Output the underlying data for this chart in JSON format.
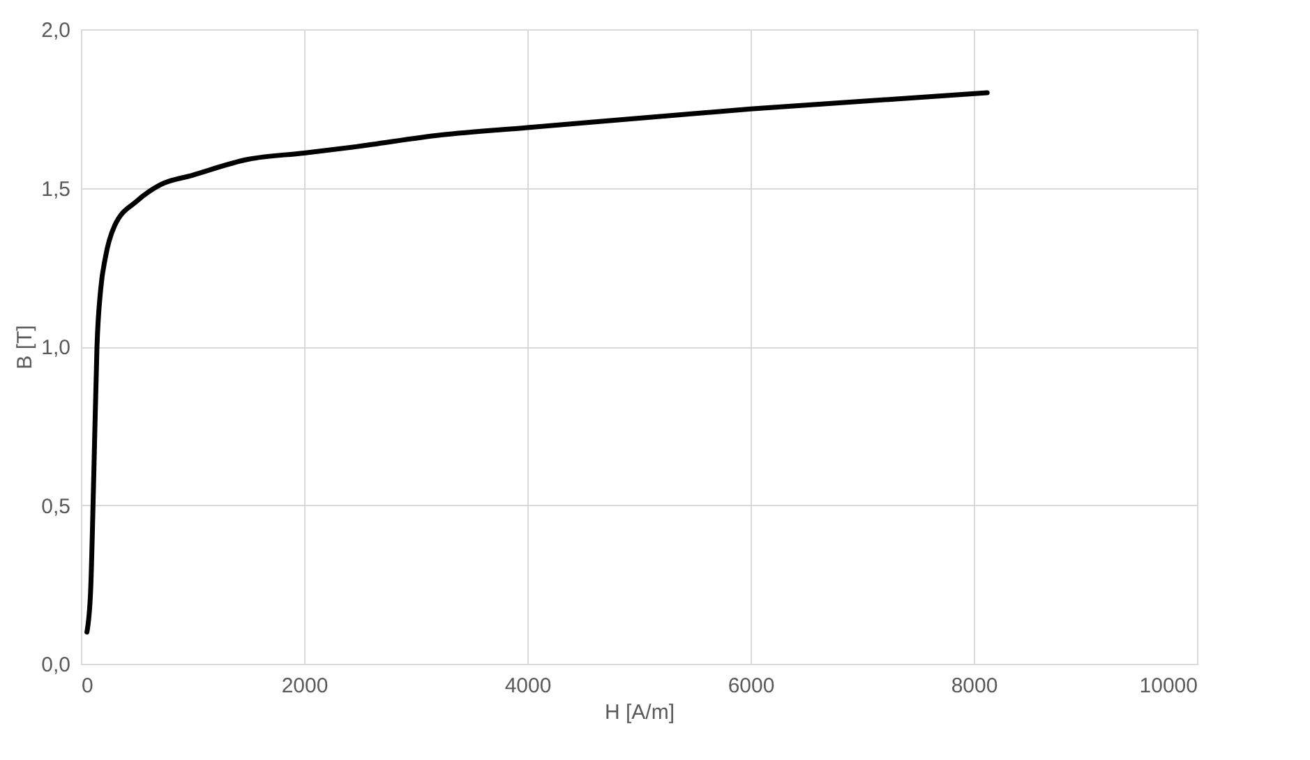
{
  "chart_data": {
    "type": "line",
    "xlabel": "H [A/m]",
    "ylabel": "B [T]",
    "x": [
      54,
      87,
      115,
      144,
      177,
      219,
      301,
      507,
      713,
      1000,
      1497,
      2000,
      2466,
      3229,
      4000,
      6000,
      8120
    ],
    "series": [
      {
        "color": "#000000",
        "values": [
          0.1,
          0.23,
          0.59,
          1.0,
          1.18,
          1.28,
          1.38,
          1.46,
          1.51,
          1.54,
          1.59,
          1.61,
          1.63,
          1.667,
          1.69,
          1.749,
          1.8
        ]
      }
    ],
    "xlim": [
      0,
      10000
    ],
    "xticks": [
      0,
      2000,
      4000,
      6000,
      8000,
      10000
    ],
    "ylim": [
      0,
      2
    ],
    "yticks": [
      {
        "value": 0,
        "label": "0,0"
      },
      {
        "value": 0.5,
        "label": "0,5"
      },
      {
        "value": 1,
        "label": "1,0"
      },
      {
        "value": 1.5,
        "label": "1,5"
      },
      {
        "value": 2,
        "label": "2,0"
      }
    ],
    "grid": true,
    "marker": "none",
    "line_style": "solid"
  }
}
